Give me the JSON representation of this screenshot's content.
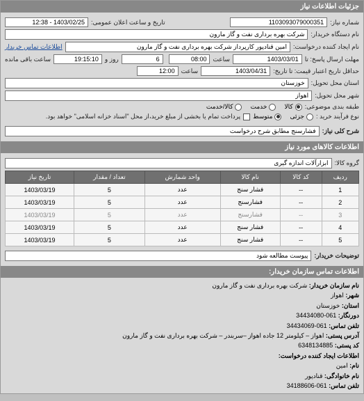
{
  "header": {
    "title": "جزئیات اطلاعات نیاز"
  },
  "top": {
    "request_no_label": "شماره نیاز:",
    "request_no": "1103093079000351",
    "datetime_label": "تاریخ و ساعت اعلان عمومی:",
    "datetime": "1403/02/25 - 12:38",
    "buyer_org_label": "نام دستگاه خریدار:",
    "buyer_org": "شرکت بهره برداری نفت و گاز مارون",
    "requester_label": "نام ایجاد کننده درخواست:",
    "requester": "امین قنادپور کارپرداز شرکت بهره برداری نفت و گاز مارون",
    "contact_link": "اطلاعات تماس خریدار",
    "deadline_send_label": "مهلت ارسال پاسخ: تا",
    "deadline_send_date": "1403/03/01",
    "deadline_send_time_label": "ساعت",
    "deadline_send_time": "08:00",
    "days_left": "6",
    "days_left_label": "روز و",
    "time_left": "19:15:10",
    "time_left_label": "ساعت باقی مانده",
    "validity_label": "حداقل تاریخ اعتبار قیمت: تا تاریخ:",
    "validity_date": "1403/04/31",
    "validity_time_label": "ساعت",
    "validity_time": "12:00",
    "province_label": "استان محل تحویل:",
    "province": "خوزستان",
    "city_label": "شهر محل تحویل:",
    "city": "اهواز",
    "subject_type_label": "طبقه بندی موضوعی:",
    "radio_goods": "کالا",
    "radio_service": "خدمت",
    "radio_goods_service": "کالا/خدمت",
    "purchase_type_label": "نوع فرآیند خرید :",
    "radio_small": "جزئی",
    "radio_medium": "متوسط",
    "purchase_note": "پرداخت تمام یا بخشی از مبلغ خرید،از محل \"اسناد خزانه اسلامی\" خواهد بود."
  },
  "need_title": {
    "label": "شرح کلی نیاز:",
    "value": "فشارسنج مطابق شرح درخواست"
  },
  "items_header": "اطلاعات کالاهای مورد نیاز",
  "group": {
    "label": "گروه کالا:",
    "value": "ابزارآلات اندازه گیری"
  },
  "table": {
    "cols": [
      "ردیف",
      "کد کالا",
      "نام کالا",
      "واحد شمارش",
      "تعداد / مقدار",
      "تاریخ نیاز"
    ],
    "rows": [
      [
        "1",
        "--",
        "فشار سنج",
        "عدد",
        "5",
        "1403/03/19"
      ],
      [
        "2",
        "--",
        "فشارسنج",
        "عدد",
        "5",
        "1403/03/19"
      ],
      [
        "3",
        "--",
        "فشارسنج",
        "عدد",
        "5",
        "1403/03/19"
      ],
      [
        "4",
        "--",
        "فشار سنج",
        "عدد",
        "5",
        "1403/03/19"
      ],
      [
        "5",
        "--",
        "فشار سنج",
        "عدد",
        "5",
        "1403/03/19"
      ]
    ],
    "watermark": "ایران تندر | مرجع مناقصات کشور 02-88349670"
  },
  "buyer_note": {
    "label": "توضیحات خریدار:",
    "value": "پیوست مطالعه شود"
  },
  "contact_header": "اطلاعات تماس سازمان خریدار:",
  "contact": {
    "org_label": "نام سازمان خریدار:",
    "org": "شرکت بهره برداری نفت و گاز مارون",
    "city_label": "شهر:",
    "city": "اهواز",
    "province_label": "استان:",
    "province": "خوزستان",
    "fax_label": "دورنگار:",
    "fax": "061-34434080",
    "phone_label": "تلفن تماس:",
    "phone": "061-34434069",
    "address_label": "آدرس پستی:",
    "address": "اهواز – کیلومتر 12 جاده اهواز –سربندر – شرکت بهره برداری نفت و گاز مارون",
    "postal_label": "کد پستی:",
    "postal": "6348134885",
    "creator_header": "اطلاعات ایجاد کننده درخواست:",
    "name_label": "نام:",
    "name": "امین",
    "family_label": "نام خانوادگی:",
    "family": "قنادپور",
    "creator_phone_label": "تلفن تماس:",
    "creator_phone": "061-34188606"
  }
}
